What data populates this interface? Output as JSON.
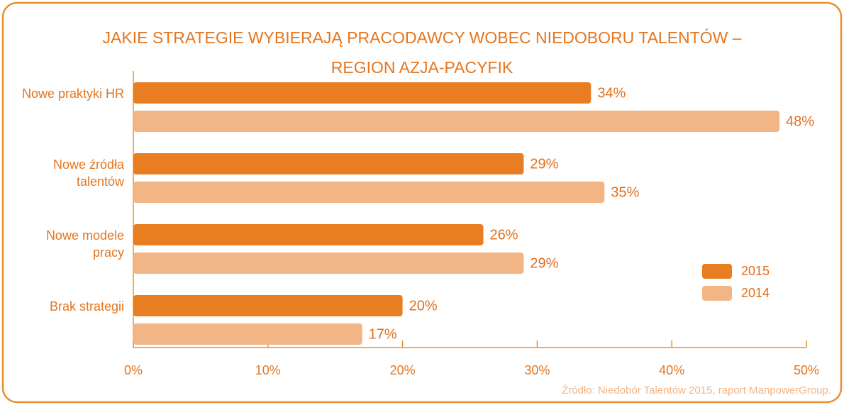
{
  "chart_data": {
    "type": "bar",
    "orientation": "horizontal",
    "title": "JAKIE STRATEGIE WYBIERAJĄ PRACODAWCY WOBEC NIEDOBORU TALENTÓW – REGION AZJA-PACYFIK",
    "categories": [
      "Nowe praktyki HR",
      "Nowe źródła talentów",
      "Nowe modele pracy",
      "Brak strategii"
    ],
    "series": [
      {
        "name": "2015",
        "color": "#e87d22",
        "values": [
          34,
          29,
          26,
          20
        ],
        "value_labels": [
          "34%",
          "29%",
          "26%",
          "20%"
        ]
      },
      {
        "name": "2014",
        "color": "#f2b585",
        "values": [
          48,
          35,
          29,
          17
        ],
        "value_labels": [
          "48%",
          "35%",
          "29%",
          "17%"
        ]
      }
    ],
    "xlim": [
      0,
      50
    ],
    "xticks": [
      {
        "value": 0,
        "label": "0%"
      },
      {
        "value": 10,
        "label": "10%"
      },
      {
        "value": 20,
        "label": "20%"
      },
      {
        "value": 30,
        "label": "30%"
      },
      {
        "value": 40,
        "label": "40%"
      },
      {
        "value": 50,
        "label": "50%"
      }
    ],
    "legend": "right",
    "source": "Źródło: Niedobór Talentów 2015, raport ManpowerGroup."
  }
}
